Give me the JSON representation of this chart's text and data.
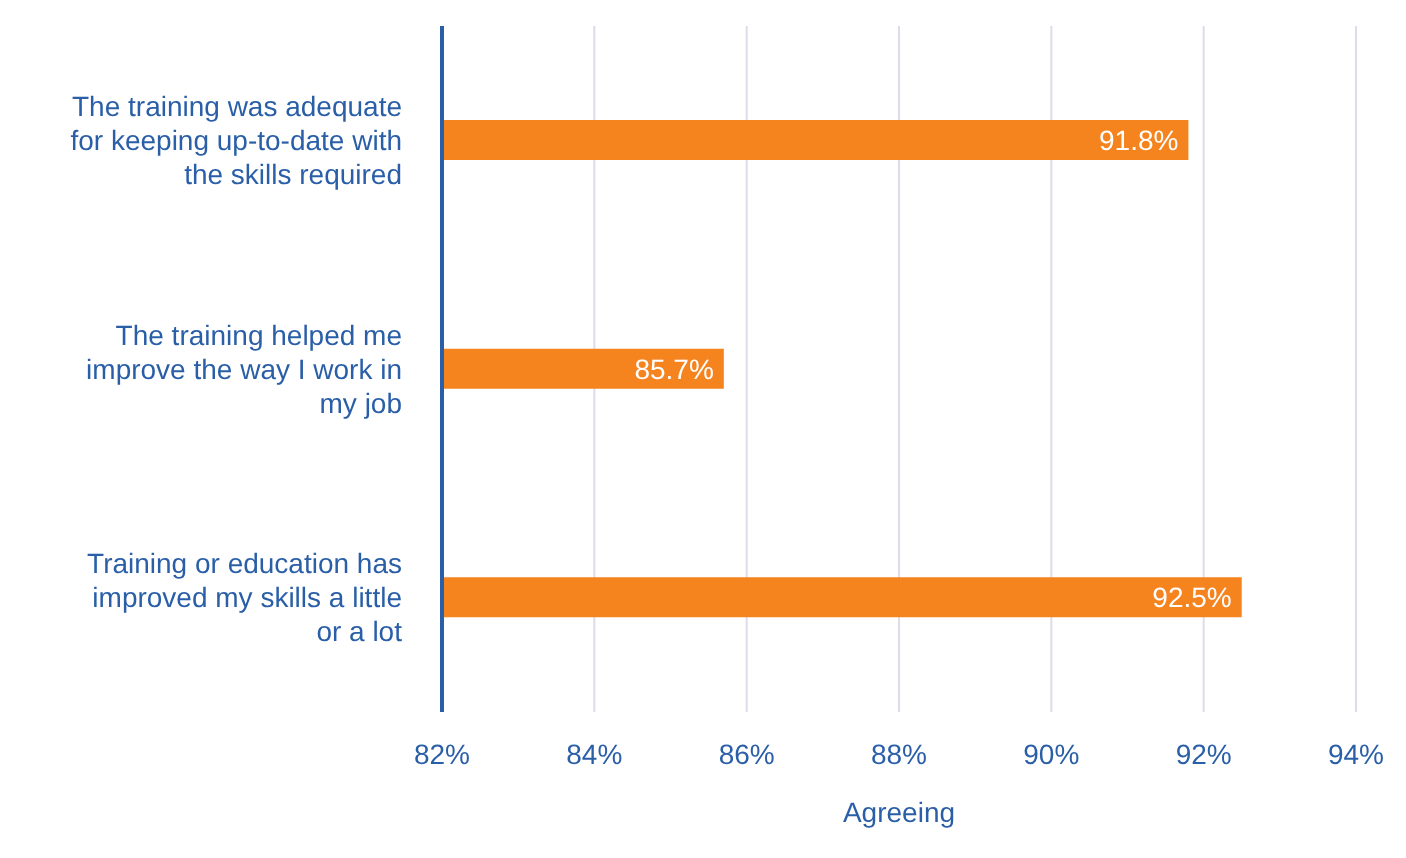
{
  "chart_data": {
    "type": "bar",
    "orientation": "horizontal",
    "xlabel": "Agreeing",
    "categories": [
      "The training was adequate for keeping up-to-date with the skills required",
      "The training helped me improve the way I work in my job",
      "Training or education has improved my skills a little or a lot"
    ],
    "values": [
      91.8,
      85.7,
      92.5
    ],
    "value_labels": [
      "91.8%",
      "85.7%",
      "92.5%"
    ],
    "color": "#f5841f",
    "xlim": [
      82,
      94
    ],
    "xticks": [
      {
        "value": 82,
        "label": "82%"
      },
      {
        "value": 84,
        "label": "84%"
      },
      {
        "value": 86,
        "label": "86%"
      },
      {
        "value": 88,
        "label": "88%"
      },
      {
        "value": 90,
        "label": "90%"
      },
      {
        "value": 92,
        "label": "92%"
      },
      {
        "value": 94,
        "label": "94%"
      }
    ],
    "grid": "x"
  }
}
